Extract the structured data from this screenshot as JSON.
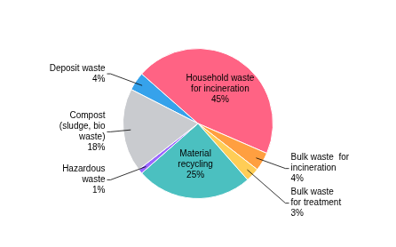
{
  "chart_data": {
    "type": "pie",
    "categories": [
      "Deposit waste\n4%",
      "Household waste\nfor incineration\n45%",
      "Bulk waste  for\nincineration\n4%",
      "Bulk waste\nfor treatment\n3%",
      "Material\nrecycling\n25%",
      "Hazardous\nwaste\n1%",
      "Compost\n(sludge, bio\nwaste)\n18%"
    ],
    "values": [
      4,
      45,
      4,
      3,
      25,
      1,
      18
    ]
  }
}
